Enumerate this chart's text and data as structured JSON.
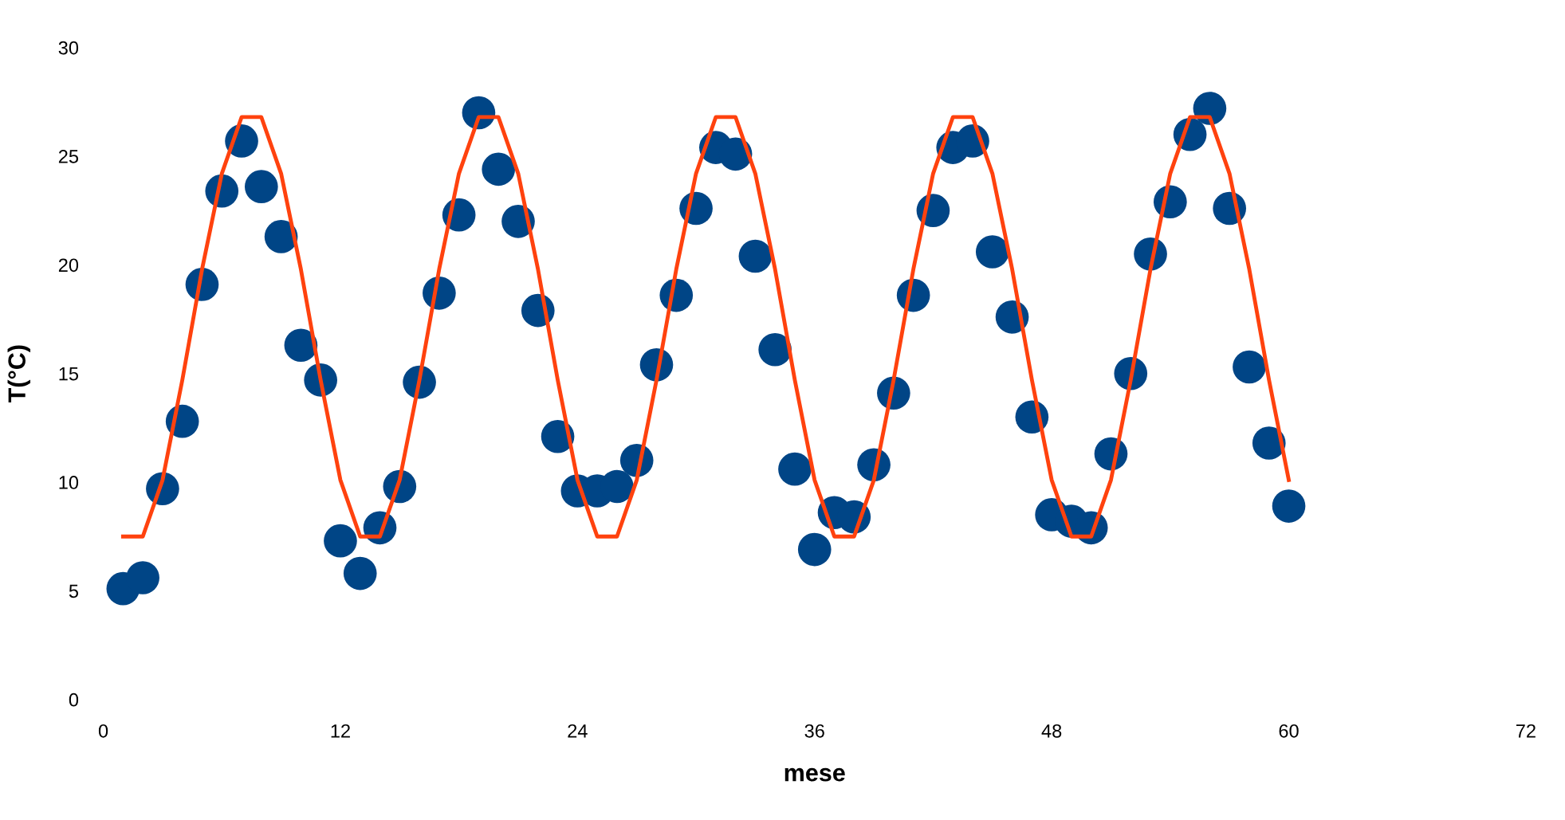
{
  "chart_data": {
    "type": "scatter",
    "xlabel": "mese",
    "ylabel": "T(°C)",
    "xlim": [
      0,
      72
    ],
    "ylim": [
      0,
      30
    ],
    "xticks": [
      0,
      12,
      24,
      36,
      48,
      60,
      72
    ],
    "yticks": [
      0,
      5,
      10,
      15,
      20,
      25,
      30
    ],
    "grid": false,
    "legend": false,
    "x": [
      1,
      2,
      3,
      4,
      5,
      6,
      7,
      8,
      9,
      10,
      11,
      12,
      13,
      14,
      15,
      16,
      17,
      18,
      19,
      20,
      21,
      22,
      23,
      24,
      25,
      26,
      27,
      28,
      29,
      30,
      31,
      32,
      33,
      34,
      35,
      36,
      37,
      38,
      39,
      40,
      41,
      42,
      43,
      44,
      45,
      46,
      47,
      48,
      49,
      50,
      51,
      52,
      53,
      54,
      55,
      56,
      57,
      58,
      59,
      60
    ],
    "series": [
      {
        "type": "line",
        "color": "#ff420e",
        "marker": "none",
        "line_style": "solid",
        "values": [
          7.5,
          7.5,
          10.1,
          14.7,
          19.8,
          24.2,
          26.8,
          26.8,
          24.2,
          19.8,
          14.7,
          10.1,
          7.5,
          7.5,
          10.1,
          14.7,
          19.8,
          24.2,
          26.8,
          26.8,
          24.2,
          19.8,
          14.7,
          10.1,
          7.5,
          7.5,
          10.1,
          14.7,
          19.8,
          24.2,
          26.8,
          26.8,
          24.2,
          19.8,
          14.7,
          10.1,
          7.5,
          7.5,
          10.1,
          14.7,
          19.8,
          24.2,
          26.8,
          26.8,
          24.2,
          19.8,
          14.7,
          10.1,
          7.5,
          7.5,
          10.1,
          14.7,
          19.8,
          24.2,
          26.8,
          26.8,
          24.2,
          19.8,
          14.7,
          10.1
        ]
      },
      {
        "marker": "circle",
        "color": "#004586",
        "values": [
          5.1,
          5.6,
          9.7,
          12.8,
          19.1,
          23.4,
          25.7,
          23.6,
          21.3,
          16.3,
          14.7,
          7.3,
          5.8,
          7.9,
          9.8,
          14.6,
          18.7,
          22.3,
          27.0,
          24.4,
          22.0,
          17.9,
          12.1,
          9.6,
          9.6,
          9.8,
          11.0,
          15.4,
          18.6,
          22.6,
          25.4,
          25.1,
          20.4,
          16.1,
          10.6,
          6.9,
          8.6,
          8.4,
          10.8,
          14.1,
          18.6,
          22.5,
          25.4,
          25.7,
          20.6,
          17.6,
          13.0,
          8.5,
          8.2,
          7.9,
          11.3,
          15.0,
          20.5,
          22.9,
          26.0,
          27.2,
          22.6,
          15.3,
          11.8,
          8.9
        ]
      }
    ]
  }
}
